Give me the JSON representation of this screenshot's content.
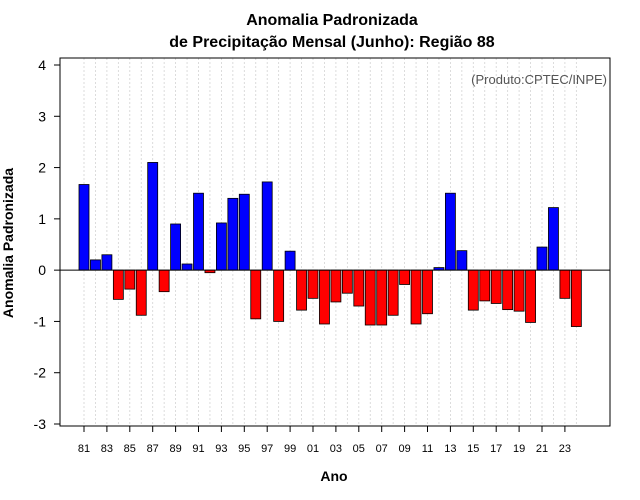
{
  "chart_data": {
    "type": "bar",
    "title": "Anomalia Padronizada",
    "subtitle": "de Precipitação Mensal (Junho): Região 88",
    "xlabel": "Ano",
    "ylabel": "Anomalia Padronizada",
    "credit": "(Produto:CPTEC/INPE)",
    "ylim": [
      -3,
      4
    ],
    "yticks": [
      "-3",
      "-2",
      "-1",
      "0",
      "1",
      "2",
      "3",
      "4"
    ],
    "grid": true,
    "categories": [
      "81",
      "82",
      "83",
      "84",
      "85",
      "86",
      "87",
      "88",
      "89",
      "90",
      "91",
      "92",
      "93",
      "94",
      "95",
      "96",
      "97",
      "98",
      "99",
      "00",
      "01",
      "02",
      "03",
      "04",
      "05",
      "06",
      "07",
      "08",
      "09",
      "10",
      "11",
      "12",
      "13",
      "14",
      "15",
      "16",
      "17",
      "18",
      "19",
      "20",
      "21",
      "22",
      "23",
      "24"
    ],
    "xtick_labels": [
      "81",
      "83",
      "85",
      "87",
      "89",
      "91",
      "93",
      "95",
      "97",
      "99",
      "01",
      "03",
      "05",
      "07",
      "09",
      "11",
      "13",
      "15",
      "17",
      "19",
      "21",
      "23"
    ],
    "values": [
      1.67,
      0.2,
      0.3,
      -0.57,
      -0.37,
      -0.88,
      2.1,
      -0.42,
      0.9,
      0.12,
      1.5,
      -0.05,
      0.92,
      1.4,
      1.48,
      -0.95,
      1.72,
      -1.0,
      0.37,
      -0.78,
      -0.55,
      -1.05,
      -0.62,
      -0.45,
      -0.7,
      -1.07,
      -1.07,
      -0.88,
      -0.28,
      -1.05,
      -0.85,
      0.05,
      1.5,
      0.38,
      -0.78,
      -0.6,
      -0.65,
      -0.77,
      -0.8,
      -1.02,
      0.45,
      1.22,
      -0.55,
      -1.1
    ],
    "colors": {
      "positive": "#0000ff",
      "negative": "#ff0000",
      "grid": "#d3d3d3"
    }
  }
}
